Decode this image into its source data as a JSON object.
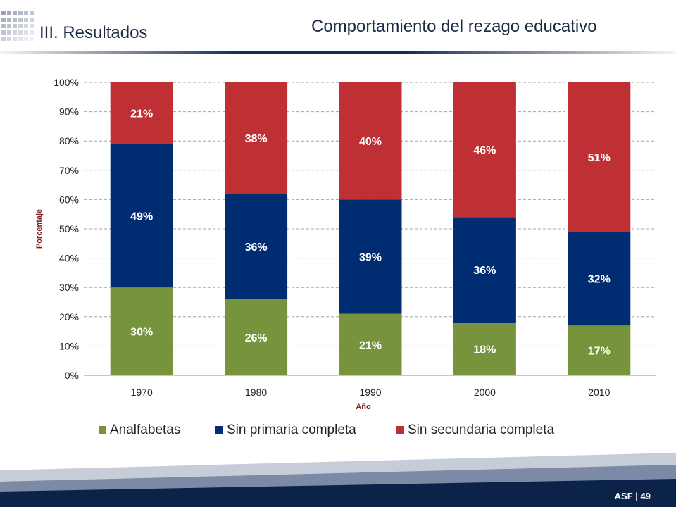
{
  "header": {
    "section_title": "III. Resultados",
    "slide_title": "Comportamiento del rezago educativo"
  },
  "footer": {
    "page_label": "ASF | 49"
  },
  "colors": {
    "analfabetas": "#77933c",
    "sin_primaria": "#002d72",
    "sin_secundaria": "#be3033",
    "title_text": "#1e2a44",
    "footer_dark": "#0b2348"
  },
  "chart_data": {
    "type": "bar",
    "stacked": true,
    "percent": true,
    "categories": [
      "1970",
      "1980",
      "1990",
      "2000",
      "2010"
    ],
    "series": [
      {
        "name": "Analfabetas",
        "values": [
          30,
          26,
          21,
          18,
          17
        ],
        "labels": [
          "30%",
          "26%",
          "21%",
          "18%",
          "17%"
        ]
      },
      {
        "name": "Sin primaria completa",
        "values": [
          49,
          36,
          39,
          36,
          32
        ],
        "labels": [
          "49%",
          "36%",
          "39%",
          "36%",
          "32%"
        ]
      },
      {
        "name": "Sin secundaria completa",
        "values": [
          21,
          38,
          40,
          46,
          51
        ],
        "labels": [
          "21%",
          "38%",
          "40%",
          "46%",
          "51%"
        ]
      }
    ],
    "xlabel": "Año",
    "ylabel": "Porcentaje",
    "ylim": [
      0,
      100
    ],
    "yticks": [
      "0%",
      "10%",
      "20%",
      "30%",
      "40%",
      "50%",
      "60%",
      "70%",
      "80%",
      "90%",
      "100%"
    ],
    "grid": true,
    "grid_style": "dashed",
    "legend_position": "bottom"
  }
}
